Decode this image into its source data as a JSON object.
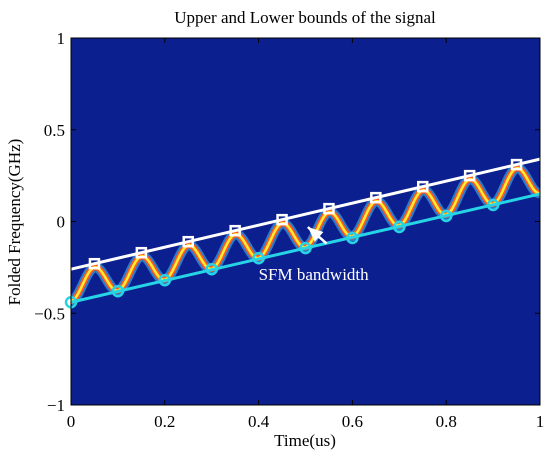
{
  "chart_data": {
    "type": "line",
    "title": "Upper and Lower bounds of the signal",
    "xlabel": "Time(us)",
    "ylabel": "Folded Frequency(GHz)",
    "xlim": [
      0,
      1
    ],
    "ylim": [
      -1,
      1
    ],
    "xticks": [
      0,
      0.2,
      0.4,
      0.6,
      0.8,
      1
    ],
    "xtick_labels": [
      "0",
      "0.2",
      "0.4",
      "0.6",
      "0.8",
      "1"
    ],
    "yticks": [
      -1,
      -0.5,
      0,
      0.5,
      1
    ],
    "ytick_labels": [
      "−1",
      "−0.5",
      "0",
      "0.5",
      "1"
    ],
    "grid": false,
    "background_color": "#0c1f8f",
    "series": [
      {
        "role": "upper-bound",
        "color": "#ffffff",
        "x": [
          0,
          1
        ],
        "y": [
          -0.26,
          0.34
        ]
      },
      {
        "role": "lower-bound",
        "color": "#26d4e6",
        "x": [
          0,
          1
        ],
        "y": [
          -0.44,
          0.15
        ]
      },
      {
        "role": "sfm-signal",
        "colors": [
          "#ffee33",
          "#ff5a1f",
          "#3fc9ff"
        ],
        "cycles": 10,
        "upper_markers": {
          "color": "#ffffff",
          "x": [
            0.05,
            0.15,
            0.25,
            0.35,
            0.45,
            0.55,
            0.65,
            0.75,
            0.85,
            0.95
          ],
          "y": [
            -0.23,
            -0.17,
            -0.11,
            -0.05,
            0.01,
            0.07,
            0.13,
            0.19,
            0.25,
            0.31
          ]
        },
        "lower_markers": {
          "color": "#26d4e6",
          "x": [
            0,
            0.1,
            0.2,
            0.3,
            0.4,
            0.5,
            0.6,
            0.7,
            0.8,
            0.9
          ],
          "y": [
            -0.44,
            -0.38,
            -0.32,
            -0.26,
            -0.2,
            -0.145,
            -0.09,
            -0.03,
            0.03,
            0.09
          ]
        }
      }
    ],
    "annotations": [
      {
        "text": "SFM bandwidth",
        "color": "#ffffff",
        "text_anchor": [
          0.4,
          -0.32
        ],
        "arrow_from": [
          0.545,
          -0.12
        ],
        "arrow_to": [
          0.505,
          -0.03
        ]
      }
    ]
  }
}
